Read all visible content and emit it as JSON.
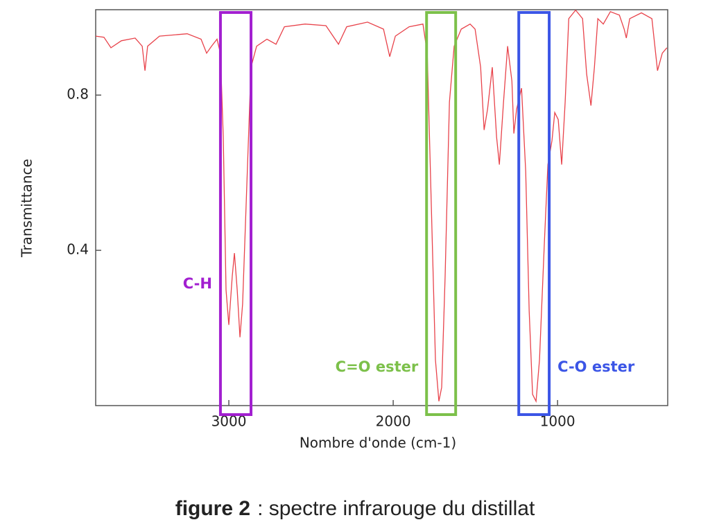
{
  "chart_data": {
    "type": "line",
    "x_label": "Nombre d'onde (cm-1)",
    "y_label": "Transmittance",
    "x": [
      3810,
      3760,
      3717,
      3654,
      3570,
      3527,
      3510,
      3494,
      3422,
      3253,
      3169,
      3135,
      3105,
      3072,
      3051,
      3034,
      3017,
      3000,
      2979,
      2966,
      2949,
      2932,
      2916,
      2895,
      2865,
      2831,
      2768,
      2713,
      2662,
      2536,
      2409,
      2333,
      2283,
      2156,
      2059,
      2021,
      1987,
      1903,
      1819,
      1793,
      1768,
      1743,
      1722,
      1705,
      1684,
      1658,
      1629,
      1586,
      1532,
      1502,
      1468,
      1447,
      1426,
      1397,
      1371,
      1354,
      1329,
      1304,
      1278,
      1266,
      1249,
      1219,
      1194,
      1173,
      1152,
      1131,
      1110,
      1080,
      1059,
      1034,
      1017,
      996,
      975,
      954,
      932,
      890,
      848,
      823,
      797,
      776,
      755,
      722,
      679,
      624,
      595,
      582,
      561,
      490,
      426,
      392,
      363,
      335
    ],
    "values": [
      0.952,
      0.949,
      0.922,
      0.94,
      0.947,
      0.926,
      0.863,
      0.926,
      0.952,
      0.958,
      0.944,
      0.908,
      0.926,
      0.944,
      0.908,
      0.692,
      0.298,
      0.208,
      0.334,
      0.393,
      0.298,
      0.176,
      0.262,
      0.513,
      0.872,
      0.926,
      0.944,
      0.931,
      0.976,
      0.983,
      0.979,
      0.931,
      0.976,
      0.988,
      0.97,
      0.899,
      0.952,
      0.976,
      0.983,
      0.908,
      0.513,
      0.118,
      0.011,
      0.047,
      0.334,
      0.782,
      0.926,
      0.97,
      0.983,
      0.97,
      0.872,
      0.71,
      0.764,
      0.872,
      0.692,
      0.621,
      0.782,
      0.926,
      0.836,
      0.701,
      0.764,
      0.818,
      0.603,
      0.244,
      0.029,
      0.011,
      0.118,
      0.423,
      0.621,
      0.683,
      0.755,
      0.737,
      0.621,
      0.782,
      0.997,
      1.019,
      0.997,
      0.854,
      0.773,
      0.872,
      0.997,
      0.983,
      1.015,
      1.006,
      0.97,
      0.947,
      0.997,
      1.012,
      0.997,
      0.863,
      0.908,
      0.922
    ],
    "color": "#e8424a",
    "xlim": [
      3810,
      330
    ],
    "xticks": [
      3000,
      2000,
      1000
    ],
    "ylim": [
      0,
      1.02
    ],
    "yticks": [
      0.4,
      0.8
    ],
    "regions": [
      {
        "label": "C-H",
        "x": [
          3051,
          2865
        ],
        "color": "#a21fd0"
      },
      {
        "label": "C=O ester",
        "x": [
          1797,
          1620
        ],
        "color": "#7cc04a"
      },
      {
        "label": "C-O ester",
        "x": [
          1236,
          1051
        ],
        "color": "#3b55e6"
      }
    ]
  },
  "caption": {
    "bold": "figure 2",
    "text": ": spectre infrarouge du distillat"
  }
}
